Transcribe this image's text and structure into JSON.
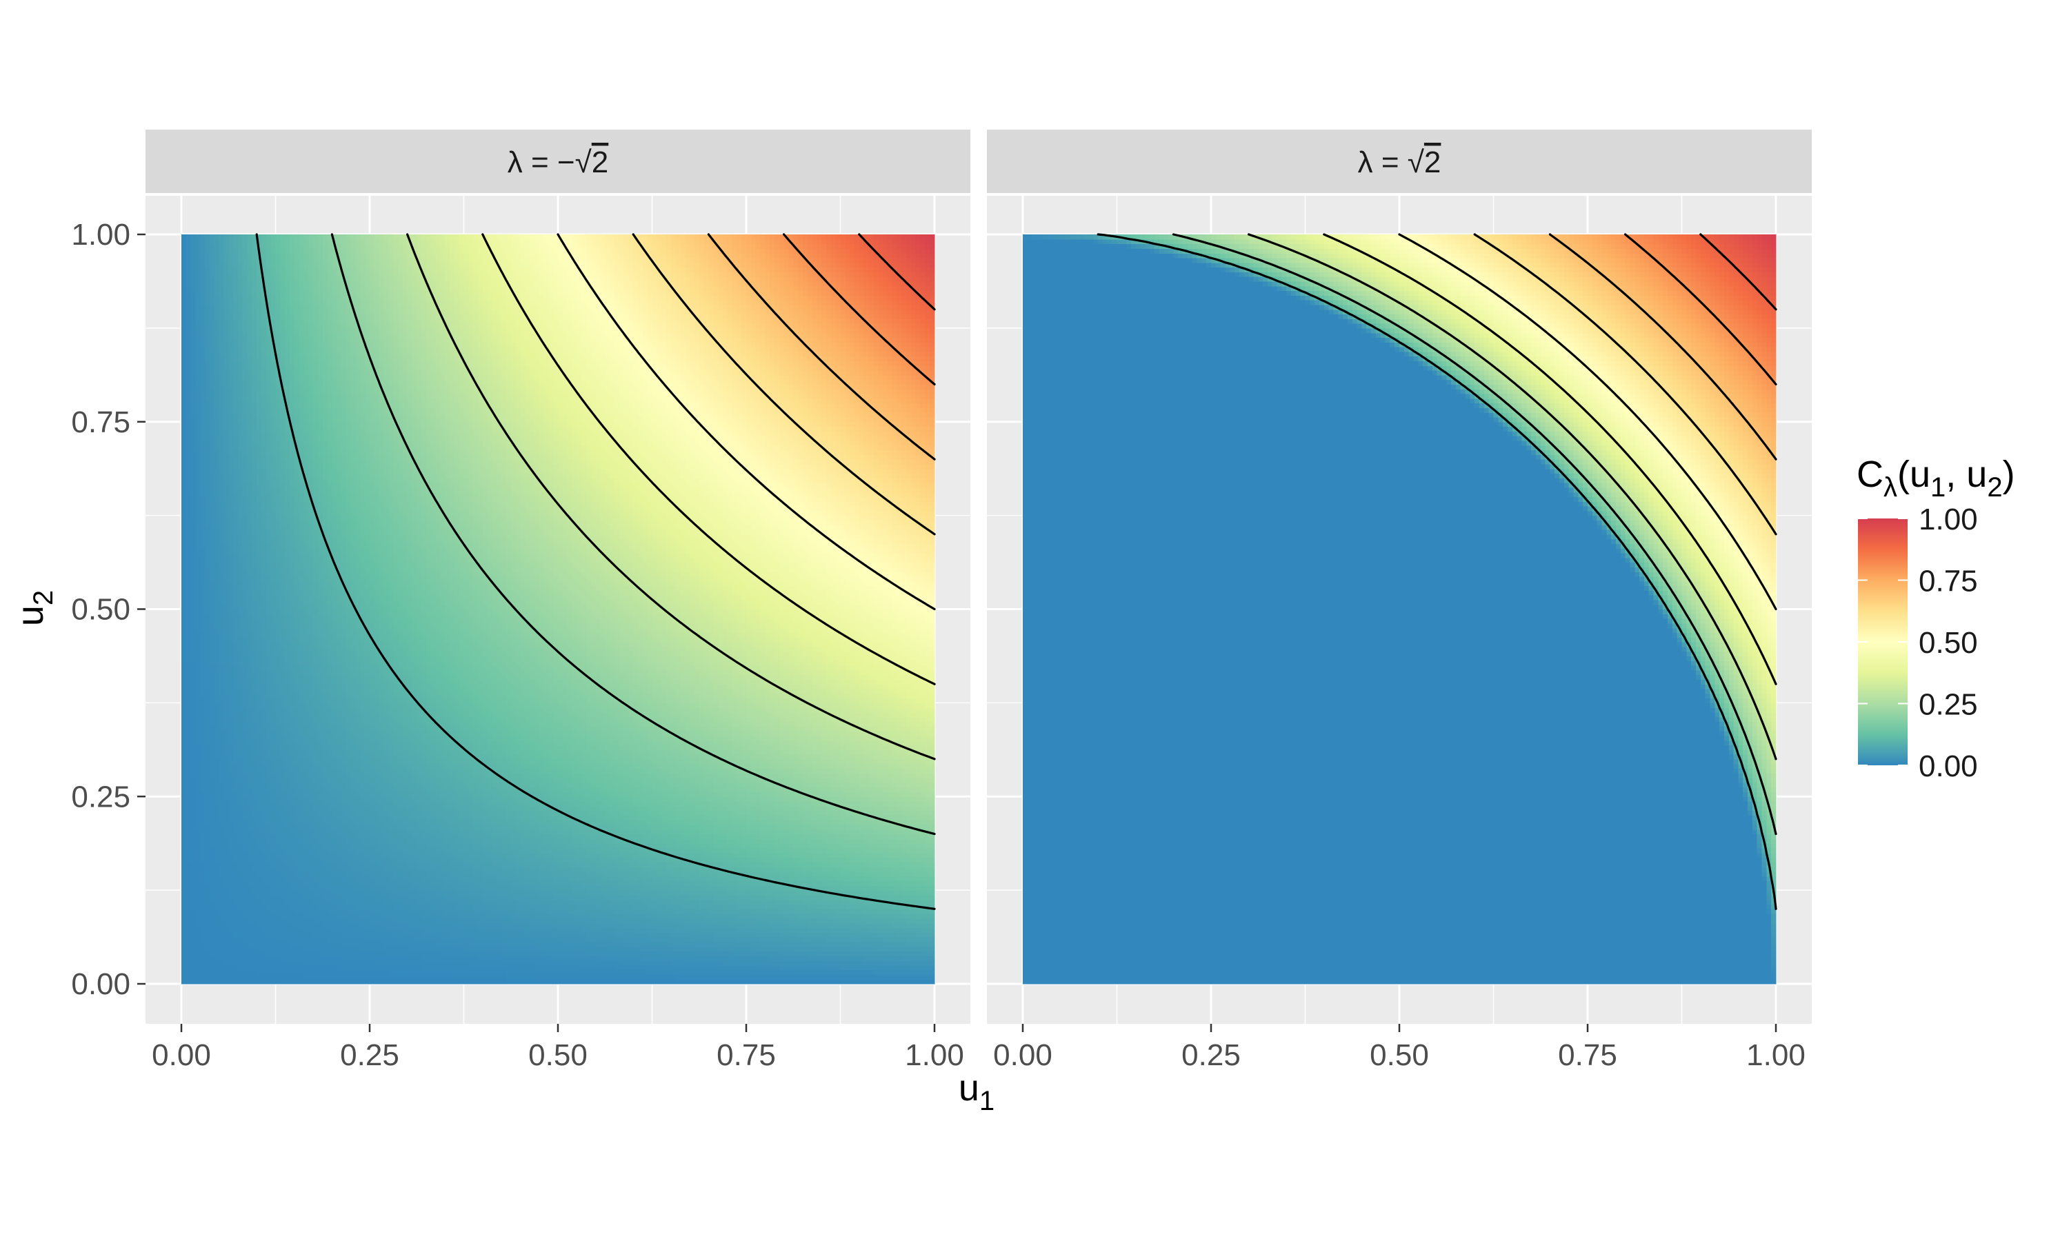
{
  "chart_data": {
    "type": "heatmap",
    "title": "",
    "xlabel": {
      "base": "u",
      "sub": "1"
    },
    "ylabel": {
      "base": "u",
      "sub": "2"
    },
    "xlim": [
      0,
      1
    ],
    "ylim": [
      0,
      1
    ],
    "x_ticks": [
      0,
      0.25,
      0.5,
      0.75,
      1
    ],
    "y_ticks": [
      0,
      0.25,
      0.5,
      0.75,
      1
    ],
    "x_tick_labels": [
      "0.00",
      "0.25",
      "0.50",
      "0.75",
      "1.00"
    ],
    "y_tick_labels": [
      "0.00",
      "0.25",
      "0.50",
      "0.75",
      "1.00"
    ],
    "grid": true,
    "contour_levels": [
      0.1,
      0.2,
      0.3,
      0.4,
      0.5,
      0.6,
      0.7,
      0.8,
      0.9
    ],
    "colormap": [
      "#3288BD",
      "#66C2A5",
      "#ABDDA4",
      "#E6F598",
      "#FFFFBF",
      "#FEE08B",
      "#FDAE61",
      "#F46D43",
      "#D53E4F"
    ],
    "panel_background": "#EBEBEB",
    "strip_background": "#D9D9D9",
    "panels": [
      {
        "label_prefix": "λ = −",
        "label_radicand": "2",
        "lambda": -1.4142
      },
      {
        "label_prefix": "λ = ",
        "label_radicand": "2",
        "lambda": 1.4142
      }
    ],
    "legend": {
      "position": "right",
      "title": {
        "base": "C",
        "lambda": "λ",
        "args": "(u",
        "s1": "1",
        "mid": ", u",
        "s2": "2",
        "close": ")"
      },
      "range": [
        0,
        1
      ],
      "breaks": [
        0,
        0.25,
        0.5,
        0.75,
        1
      ],
      "labels": [
        "0.00",
        "0.25",
        "0.50",
        "0.75",
        "1.00"
      ]
    }
  }
}
